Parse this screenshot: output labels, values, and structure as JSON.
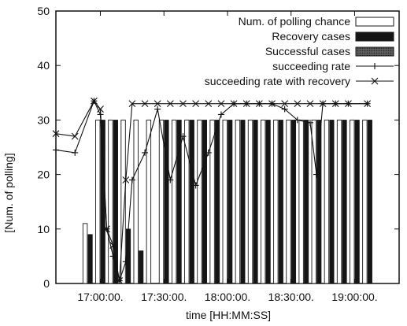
{
  "chart_data": {
    "type": "bar",
    "xlabel": "time [HH:MM:SS]",
    "ylabel": "[Num. of polling]",
    "ylim": [
      0,
      50
    ],
    "yticks": [
      0,
      10,
      20,
      30,
      40,
      50
    ],
    "xtick_labels": [
      "17:00:00.",
      "17:30:00.",
      "18:00:00.",
      "18:30:00.",
      "19:00:00."
    ],
    "xtick_positions": [
      7,
      17,
      27,
      37,
      47
    ],
    "x_range": [
      0,
      54
    ],
    "grid": false,
    "legend_position": "top-right",
    "bar_slots": [
      5,
      7,
      9,
      11,
      13,
      15,
      17,
      19,
      21,
      23,
      25,
      27,
      29,
      31,
      33,
      35,
      37,
      39,
      41,
      43,
      45,
      47,
      49
    ],
    "series": [
      {
        "name": "Num. of polling chance",
        "kind": "bar",
        "values": [
          11,
          30,
          30,
          30,
          30,
          30,
          30,
          30,
          30,
          30,
          30,
          30,
          30,
          30,
          30,
          30,
          30,
          30,
          30,
          30,
          30,
          30,
          30
        ]
      },
      {
        "name": "Recovery cases",
        "kind": "bar",
        "values": [
          9,
          30,
          30,
          10,
          6,
          0,
          30,
          30,
          30,
          30,
          30,
          30,
          30,
          30,
          30,
          30,
          30,
          30,
          30,
          30,
          30,
          30,
          30
        ]
      },
      {
        "name": "Successful cases",
        "kind": "bar",
        "values": [
          0,
          0,
          0,
          0,
          0,
          0,
          0,
          0,
          0,
          0,
          0,
          0,
          0,
          0,
          0,
          0,
          0,
          0,
          0,
          0,
          0,
          0,
          0
        ]
      },
      {
        "name": "succeeding rate",
        "kind": "line",
        "marker": "plus",
        "points": [
          [
            0,
            24.5
          ],
          [
            3,
            24
          ],
          [
            6,
            33.5
          ],
          [
            7,
            31
          ],
          [
            8,
            10
          ],
          [
            9,
            5
          ],
          [
            10,
            0.5
          ],
          [
            11,
            4
          ],
          [
            12,
            19
          ],
          [
            14,
            24
          ],
          [
            16,
            32
          ],
          [
            18,
            19
          ],
          [
            20,
            27
          ],
          [
            22,
            18
          ],
          [
            24,
            24
          ],
          [
            26,
            31
          ],
          [
            28,
            33
          ],
          [
            30,
            33
          ],
          [
            32,
            33
          ],
          [
            34,
            33
          ],
          [
            36,
            32
          ],
          [
            38,
            30
          ],
          [
            40,
            29.5
          ],
          [
            41,
            20
          ],
          [
            42,
            33
          ],
          [
            44,
            33
          ],
          [
            46,
            33
          ],
          [
            49,
            33
          ]
        ]
      },
      {
        "name": "succeeding rate with recovery",
        "kind": "line",
        "marker": "cross",
        "points": [
          [
            0,
            27.5
          ],
          [
            3,
            27
          ],
          [
            6,
            33.5
          ],
          [
            7,
            32
          ],
          [
            8,
            10
          ],
          [
            9,
            7
          ],
          [
            10,
            0.5
          ],
          [
            11,
            19
          ],
          [
            12,
            33
          ],
          [
            14,
            33
          ],
          [
            16,
            33
          ],
          [
            18,
            33
          ],
          [
            20,
            33
          ],
          [
            22,
            33
          ],
          [
            24,
            33
          ],
          [
            26,
            33
          ],
          [
            28,
            33
          ],
          [
            30,
            33
          ],
          [
            32,
            33
          ],
          [
            34,
            33
          ],
          [
            36,
            33
          ],
          [
            38,
            33
          ],
          [
            40,
            33
          ],
          [
            42,
            33
          ],
          [
            44,
            33
          ],
          [
            46,
            33
          ],
          [
            49,
            33
          ]
        ]
      }
    ]
  },
  "colors": {
    "axis": "#111111",
    "bar_outline": "#1a1a1a",
    "bar_fill": "#ffffff",
    "recovery_fill": "#151515",
    "successful_fill": "#5e5e5e",
    "line": "#111111"
  }
}
